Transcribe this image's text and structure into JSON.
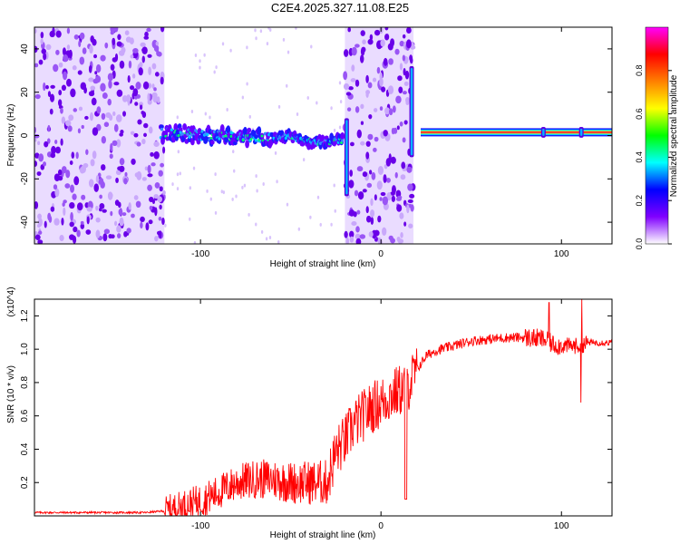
{
  "title": "C2E4.2025.327.11.08.E25",
  "chart_data": [
    {
      "type": "heatmap",
      "xlabel": "Height of straight line (km)",
      "ylabel": "Frequency (Hz)",
      "xlim": [
        -192,
        128
      ],
      "ylim": [
        -50,
        50
      ],
      "x_ticks": [
        -100,
        0,
        100
      ],
      "y_ticks": [
        -40,
        -20,
        0,
        20,
        40
      ],
      "colorbar": {
        "label": "Normalized spectral amplitude",
        "range": [
          0,
          1
        ],
        "ticks": [
          0.0,
          0.2,
          0.4,
          0.6,
          0.8
        ],
        "colormap": [
          "#ffffff",
          "#8000ff",
          "#0000ff",
          "#00ffff",
          "#00ff00",
          "#ffff00",
          "#ff8000",
          "#ff0000",
          "#ff00ff"
        ]
      },
      "ridge": {
        "x": [
          -122,
          -110,
          -100,
          -90,
          -80,
          -70,
          -60,
          -50,
          -45,
          -40,
          -35,
          -30,
          -25,
          -20
        ],
        "y": [
          1,
          1,
          0,
          0,
          -1,
          -1,
          -1,
          0,
          -2,
          -3,
          -3,
          -3,
          -2,
          -2
        ]
      },
      "tone": {
        "x_range": [
          22,
          128
        ],
        "y": 1.5
      },
      "noise_regions": [
        [
          -192,
          -120
        ],
        [
          -20,
          18
        ]
      ],
      "spikes": [
        {
          "x": -19,
          "y_range": [
            -28,
            8
          ]
        },
        {
          "x": 17,
          "y_range": [
            -10,
            32
          ]
        },
        {
          "x": 90,
          "y_range": [
            -1,
            4
          ]
        },
        {
          "x": 111,
          "y_range": [
            -1,
            4
          ]
        }
      ]
    },
    {
      "type": "line",
      "xlabel": "Height of straight line (km)",
      "ylabel": "SNR (10 * v/v)",
      "y_multiplier": "(x10^4)",
      "xlim": [
        -192,
        128
      ],
      "ylim": [
        0,
        1.3
      ],
      "x_ticks": [
        -100,
        0,
        100
      ],
      "y_ticks": [
        0.2,
        0.4,
        0.6,
        0.8,
        1.0,
        1.2
      ],
      "color": "#ff0000",
      "series": [
        {
          "x": [
            -192,
            -170,
            -150,
            -130,
            -120,
            -110,
            -100,
            -90,
            -80,
            -70,
            -60,
            -50,
            -40,
            -30,
            -25,
            -20,
            -15,
            -10,
            -5,
            0,
            5,
            10,
            15,
            20,
            25,
            30,
            40,
            50,
            60,
            70,
            80,
            90,
            95,
            100,
            110,
            115,
            128
          ],
          "y": [
            0.02,
            0.02,
            0.02,
            0.02,
            0.03,
            0.06,
            0.09,
            0.14,
            0.2,
            0.22,
            0.22,
            0.2,
            0.2,
            0.2,
            0.38,
            0.45,
            0.55,
            0.6,
            0.65,
            0.68,
            0.72,
            0.75,
            0.78,
            0.88,
            0.96,
            0.99,
            1.02,
            1.05,
            1.06,
            1.07,
            1.07,
            1.06,
            1.03,
            1.02,
            1.02,
            1.04,
            1.04
          ]
        }
      ]
    }
  ]
}
